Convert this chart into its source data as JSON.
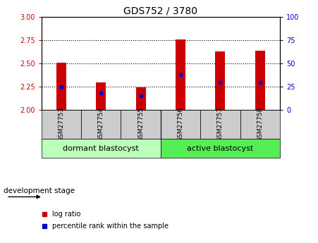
{
  "title": "GDS752 / 3780",
  "samples": [
    "GSM27753",
    "GSM27754",
    "GSM27755",
    "GSM27756",
    "GSM27757",
    "GSM27758"
  ],
  "log_ratio_values": [
    2.51,
    2.3,
    2.24,
    2.76,
    2.63,
    2.64
  ],
  "percentile_rank_values": [
    25,
    18,
    15,
    38,
    30,
    30
  ],
  "ylim_left": [
    2.0,
    3.0
  ],
  "ylim_right": [
    0,
    100
  ],
  "yticks_left": [
    2.0,
    2.25,
    2.5,
    2.75,
    3.0
  ],
  "yticks_right": [
    0,
    25,
    50,
    75,
    100
  ],
  "bar_color": "#cc0000",
  "marker_color": "#0000cc",
  "bar_bottom": 2.0,
  "groups": [
    {
      "label": "dormant blastocyst",
      "color": "#bbffbb"
    },
    {
      "label": "active blastocyst",
      "color": "#55ee55"
    }
  ],
  "xlabel_stage": "development stage",
  "axis_label_color_left": "#cc0000",
  "axis_label_color_right": "#0000cc",
  "bar_width": 0.25,
  "grid_linestyle": ":",
  "grid_linewidth": 0.8,
  "sample_box_color": "#cccccc",
  "title_fontsize": 10,
  "tick_fontsize": 7,
  "sample_fontsize": 6.5,
  "group_fontsize": 8,
  "legend_fontsize": 7
}
